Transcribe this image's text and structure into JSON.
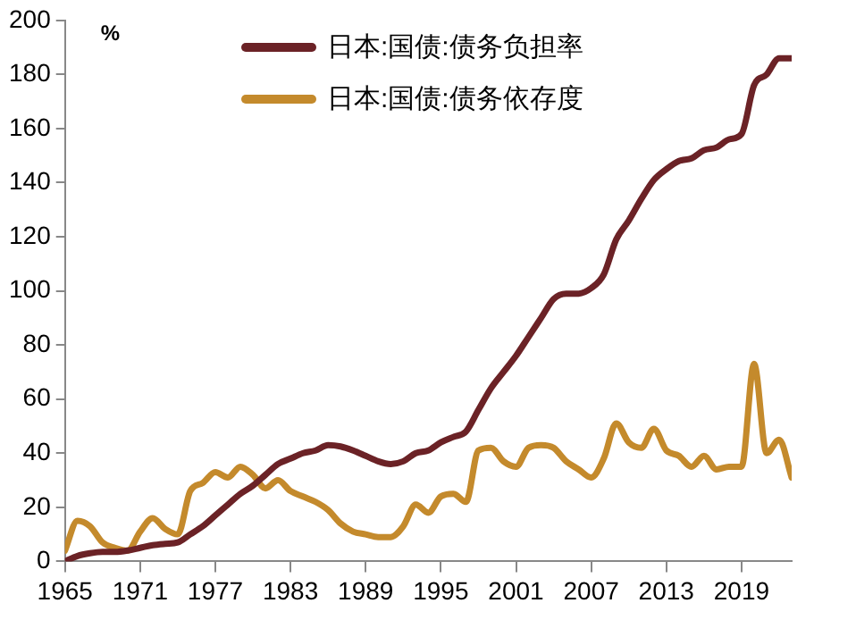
{
  "chart_data": {
    "type": "line",
    "ylabel": "%",
    "legend": "top",
    "grid": false,
    "marker": "none",
    "line_style": "solid",
    "x": [
      1965,
      1966,
      1967,
      1968,
      1969,
      1970,
      1971,
      1972,
      1973,
      1974,
      1975,
      1976,
      1977,
      1978,
      1979,
      1980,
      1981,
      1982,
      1983,
      1984,
      1985,
      1986,
      1987,
      1988,
      1989,
      1990,
      1991,
      1992,
      1993,
      1994,
      1995,
      1996,
      1997,
      1998,
      1999,
      2000,
      2001,
      2002,
      2003,
      2004,
      2005,
      2006,
      2007,
      2008,
      2009,
      2010,
      2011,
      2012,
      2013,
      2014,
      2015,
      2016,
      2017,
      2018,
      2019,
      2020,
      2021,
      2022,
      2023
    ],
    "xlim": [
      1965,
      2023
    ],
    "xticks": [
      1965,
      1971,
      1977,
      1983,
      1989,
      1995,
      2001,
      2007,
      2013,
      2019
    ],
    "ylim": [
      0,
      200
    ],
    "yticks": [
      0,
      20,
      40,
      60,
      80,
      100,
      120,
      140,
      160,
      180,
      200
    ],
    "series": [
      {
        "name": "日本:国债:债务负担率",
        "color": "#6b2226",
        "values": [
          0,
          2,
          3,
          3.5,
          3.5,
          4,
          5,
          6,
          6.5,
          7,
          10,
          13,
          17,
          21,
          25,
          28,
          32,
          36,
          38,
          40,
          41,
          43,
          42.5,
          41,
          39,
          37,
          36,
          37,
          40,
          41,
          44,
          46,
          48,
          56,
          64,
          70,
          76,
          83,
          90,
          97,
          99,
          99,
          101,
          106,
          119,
          126,
          134,
          141,
          145,
          148,
          149,
          152,
          153,
          156,
          158,
          176,
          180,
          186,
          186
        ]
      },
      {
        "name": "日本:国债:债务依存度",
        "color": "#c48a2c",
        "values": [
          4,
          15,
          13,
          7,
          5,
          4,
          11,
          16,
          12,
          10,
          26,
          29,
          33,
          31,
          35,
          32,
          27,
          30,
          26,
          24,
          22,
          19,
          14,
          11,
          10,
          9,
          9,
          13,
          21,
          18,
          24,
          25,
          22,
          41,
          42,
          37,
          35,
          42,
          43,
          42,
          37,
          34,
          31,
          38,
          51,
          44,
          42,
          49,
          41,
          39,
          35,
          39,
          34,
          35,
          35,
          73,
          40,
          45,
          31
        ]
      }
    ]
  }
}
